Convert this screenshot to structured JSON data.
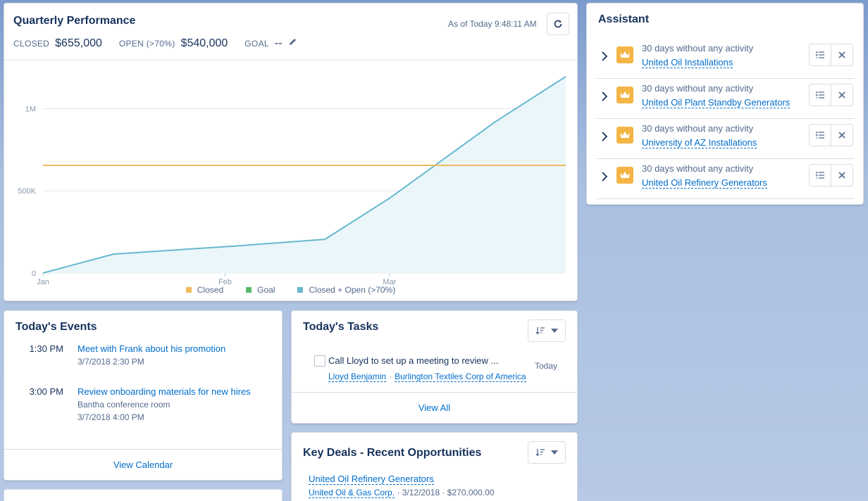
{
  "quarterly": {
    "title": "Quarterly Performance",
    "as_of": "As of Today 9:48:11 AM",
    "closed_label": "CLOSED",
    "closed_value": "$655,000",
    "open_label": "OPEN (>70%)",
    "open_value": "$540,000",
    "goal_label": "GOAL",
    "goal_value": "--"
  },
  "chart_data": {
    "type": "area",
    "title": "",
    "xlabel": "",
    "ylabel": "",
    "x_ticks": [
      "Jan",
      "Feb",
      "Mar"
    ],
    "y_ticks": [
      "0",
      "500K",
      "1M"
    ],
    "ylim": [
      0,
      1250000
    ],
    "grid": true,
    "legend_position": "bottom",
    "series": [
      {
        "name": "Closed",
        "color": "#f0b95a",
        "type": "line",
        "points": [
          {
            "x": "2018-01-01",
            "y": 655000
          },
          {
            "x": "2018-03-31",
            "y": 655000
          }
        ]
      },
      {
        "name": "Goal",
        "color": "#59b86b",
        "type": "line",
        "points": []
      },
      {
        "name": "Closed + Open (>70%)",
        "color": "#67b8cf",
        "type": "area",
        "points": [
          {
            "x": "2018-01-01",
            "y": 0
          },
          {
            "x": "2018-01-13",
            "y": 115000
          },
          {
            "x": "2018-02-03",
            "y": 165000
          },
          {
            "x": "2018-02-18",
            "y": 205000
          },
          {
            "x": "2018-03-01",
            "y": 455000
          },
          {
            "x": "2018-03-19",
            "y": 920000
          },
          {
            "x": "2018-03-31",
            "y": 1195000
          }
        ]
      }
    ]
  },
  "assistant": {
    "title": "Assistant",
    "items": [
      {
        "text": "30 days without any activity",
        "link": "United Oil Installations"
      },
      {
        "text": "30 days without any activity",
        "link": "United Oil Plant Standby Generators"
      },
      {
        "text": "30 days without any activity",
        "link": "University of AZ Installations"
      },
      {
        "text": "30 days without any activity",
        "link": "United Oil Refinery Generators"
      }
    ]
  },
  "events": {
    "title": "Today's Events",
    "items": [
      {
        "time": "1:30 PM",
        "title": "Meet with Frank about his promotion",
        "location": "",
        "end": "3/7/2018 2:30 PM"
      },
      {
        "time": "3:00 PM",
        "title": "Review onboarding materials for new hires",
        "location": "Bantha conference room",
        "end": "3/7/2018 4:00 PM"
      }
    ],
    "footer": "View Calendar"
  },
  "tasks": {
    "title": "Today's Tasks",
    "item": {
      "title": "Call Lloyd to set up a meeting to review ...",
      "date": "Today",
      "contact": "Lloyd Benjamin",
      "account": "Burlington Textiles Corp of America"
    },
    "footer": "View All"
  },
  "deals": {
    "title": "Key Deals - Recent Opportunities",
    "item": {
      "title": "United Oil Refinery Generators",
      "account": "United Oil & Gas Corp.",
      "date": "3/12/2018",
      "amount": "$270,000.00"
    }
  },
  "colors": {
    "link": "#006dcc",
    "text": "#16325c",
    "muted": "#54698d",
    "assistant_icon": "#f5b546"
  },
  "icons": [
    "refresh-icon",
    "pencil-icon",
    "chevron-right-icon",
    "crown-icon",
    "task-list-icon",
    "close-icon",
    "sort-icon",
    "chevron-down-icon"
  ]
}
